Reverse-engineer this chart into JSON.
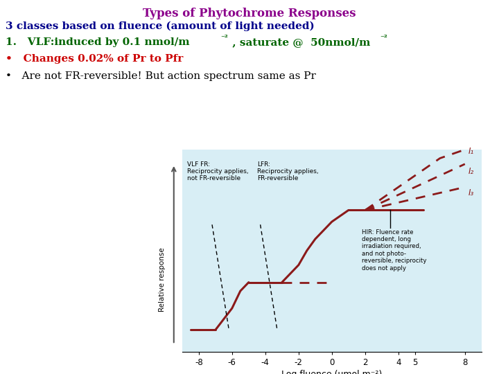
{
  "title": "Types of Phytochrome Responses",
  "title_color": "#8B008B",
  "line1": "3 classes based on fluence (amount of light needed)",
  "line1_color": "#00008B",
  "line2a": "1.   VLF:induced by 0.1 nmol/m",
  "line2b": " , saturate @  50nmol/m",
  "line2_color": "#006400",
  "line3_bullet": "•   Changes 0.02% of Pr to Pfr",
  "line3_color": "#CC0000",
  "line4_bullet": "•   Are not FR-reversible! But action spectrum same as Pr",
  "line4_color": "#000000",
  "bg_color": "#FFFFFF",
  "plot_bg_color": "#D8EEF5",
  "curve_color": "#8B1A1A",
  "xlabel": "Log fluence (μmol m⁻²)",
  "ylabel": "Relative response",
  "xlim": [
    -9,
    9
  ],
  "ylim": [
    0,
    14
  ],
  "xticks": [
    -8,
    -6,
    -4,
    -2,
    0,
    2,
    4,
    5,
    8
  ],
  "annot_vlf": "VLF FR:\nReciprocity applies,\nnot FR-reversible",
  "annot_lfr": "LFR:\nReciprocity applies,\nFR-reversible",
  "annot_hir": "HIR: Fluence rate\ndependent, long\nirradiation required,\nand not photo-\nreversible, reciprocity\ndoes not apply",
  "I1_label": "I₁",
  "I2_label": "I₂",
  "I3_label": "I₃"
}
